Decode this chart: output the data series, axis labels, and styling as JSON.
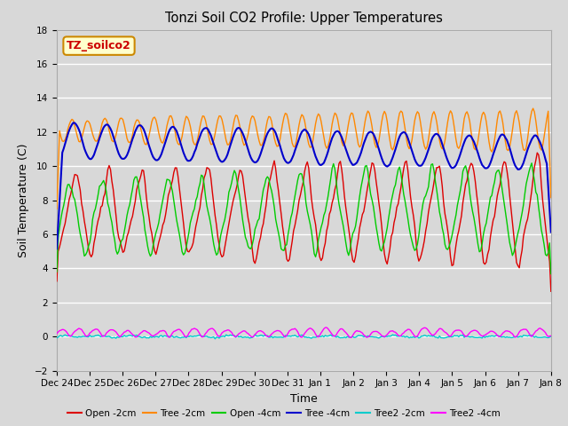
{
  "title": "Tonzi Soil CO2 Profile: Upper Temperatures",
  "ylabel": "Soil Temperature (C)",
  "xlabel": "Time",
  "ylim": [
    -2,
    18
  ],
  "yticks": [
    -2,
    0,
    2,
    4,
    6,
    8,
    10,
    12,
    14,
    16,
    18
  ],
  "background_color": "#d8d8d8",
  "plot_bg_color": "#d8d8d8",
  "grid_color": "#ffffff",
  "label_box": "TZ_soilco2",
  "label_box_bg": "#ffffcc",
  "label_box_edge": "#cc8800",
  "label_box_text": "#cc0000",
  "series": {
    "Open -2cm": {
      "color": "#dd0000",
      "lw": 1.0,
      "ls": "-"
    },
    "Tree -2cm": {
      "color": "#ff8800",
      "lw": 1.0,
      "ls": "-"
    },
    "Open -4cm": {
      "color": "#00cc00",
      "lw": 1.0,
      "ls": "-"
    },
    "Tree -4cm": {
      "color": "#0000cc",
      "lw": 1.5,
      "ls": "-"
    },
    "Tree2 -2cm": {
      "color": "#00cccc",
      "lw": 1.0,
      "ls": "-"
    },
    "Tree2 -4cm": {
      "color": "#ff00ff",
      "lw": 1.0,
      "ls": "-"
    }
  },
  "xtick_labels": [
    "Dec 24",
    "Dec 25",
    "Dec 26",
    "Dec 27",
    "Dec 28",
    "Dec 29",
    "Dec 30",
    "Dec 31",
    "Jan 1",
    "Jan 2",
    "Jan 3",
    "Jan 4",
    "Jan 5",
    "Jan 6",
    "Jan 7",
    "Jan 8"
  ],
  "legend_items": [
    {
      "label": "Open -2cm",
      "color": "#dd0000",
      "ls": "-"
    },
    {
      "label": "Tree -2cm",
      "color": "#ff8800",
      "ls": "-"
    },
    {
      "label": "Open -4cm",
      "color": "#00cc00",
      "ls": "-"
    },
    {
      "label": "Tree -4cm",
      "color": "#0000cc",
      "ls": "-"
    },
    {
      "label": "Tree2 -2cm",
      "color": "#00cccc",
      "ls": "-"
    },
    {
      "label": "Tree2 -4cm",
      "color": "#ff00ff",
      "ls": "-"
    }
  ]
}
